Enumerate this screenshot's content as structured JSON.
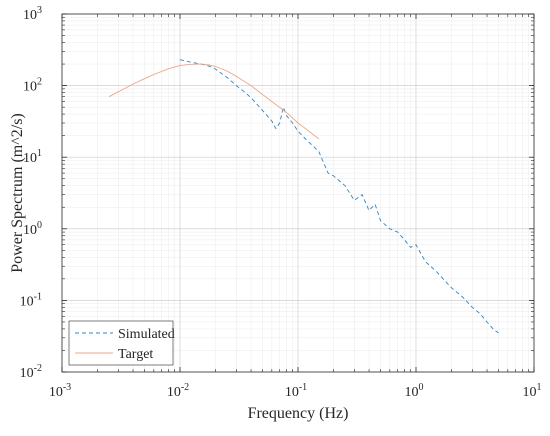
{
  "chart_data": {
    "type": "line",
    "title": "",
    "xlabel": "Frequency (Hz)",
    "ylabel": "Power Spectrum (m^2/s)",
    "xscale": "log",
    "yscale": "log",
    "xlim": [
      0.001,
      10
    ],
    "ylim": [
      0.01,
      1000
    ],
    "xticks": [
      {
        "base": "10",
        "exp": "-3"
      },
      {
        "base": "10",
        "exp": "-2"
      },
      {
        "base": "10",
        "exp": "-1"
      },
      {
        "base": "10",
        "exp": "0"
      },
      {
        "base": "10",
        "exp": "1"
      }
    ],
    "yticks": [
      {
        "base": "10",
        "exp": "-2"
      },
      {
        "base": "10",
        "exp": "-1"
      },
      {
        "base": "10",
        "exp": "0"
      },
      {
        "base": "10",
        "exp": "1"
      },
      {
        "base": "10",
        "exp": "2"
      },
      {
        "base": "10",
        "exp": "3"
      }
    ],
    "grid": true,
    "legend": "bottom-left",
    "series": [
      {
        "name": "Simulated",
        "style": "dashed",
        "color": "#2e86c1",
        "x": [
          0.01,
          0.012,
          0.014,
          0.016,
          0.018,
          0.02,
          0.025,
          0.03,
          0.035,
          0.04,
          0.05,
          0.06,
          0.065,
          0.07,
          0.075,
          0.08,
          0.09,
          0.1,
          0.12,
          0.15,
          0.18,
          0.2,
          0.25,
          0.3,
          0.35,
          0.4,
          0.45,
          0.5,
          0.6,
          0.7,
          0.8,
          0.9,
          1.0,
          1.2,
          1.5,
          1.8,
          2.0,
          2.5,
          3.0,
          3.5,
          4.0,
          4.5,
          5.0
        ],
        "y": [
          230,
          215,
          205,
          195,
          185,
          170,
          130,
          100,
          82,
          68,
          45,
          32,
          25,
          30,
          50,
          38,
          30,
          23,
          17,
          12,
          6,
          5.5,
          4,
          2.5,
          3,
          1.8,
          2.2,
          1.3,
          1.0,
          0.9,
          0.7,
          0.55,
          0.6,
          0.35,
          0.25,
          0.18,
          0.15,
          0.11,
          0.08,
          0.065,
          0.05,
          0.04,
          0.035
        ]
      },
      {
        "name": "Target",
        "style": "solid",
        "color": "#f0a58a",
        "x": [
          0.0025,
          0.003,
          0.004,
          0.005,
          0.006,
          0.008,
          0.01,
          0.012,
          0.015,
          0.018,
          0.02,
          0.025,
          0.03,
          0.04,
          0.05,
          0.06,
          0.08,
          0.1,
          0.12,
          0.15
        ],
        "y": [
          70,
          82,
          105,
          125,
          143,
          172,
          190,
          198,
          200,
          193,
          185,
          160,
          135,
          100,
          75,
          60,
          42,
          30,
          24,
          18
        ]
      }
    ]
  }
}
